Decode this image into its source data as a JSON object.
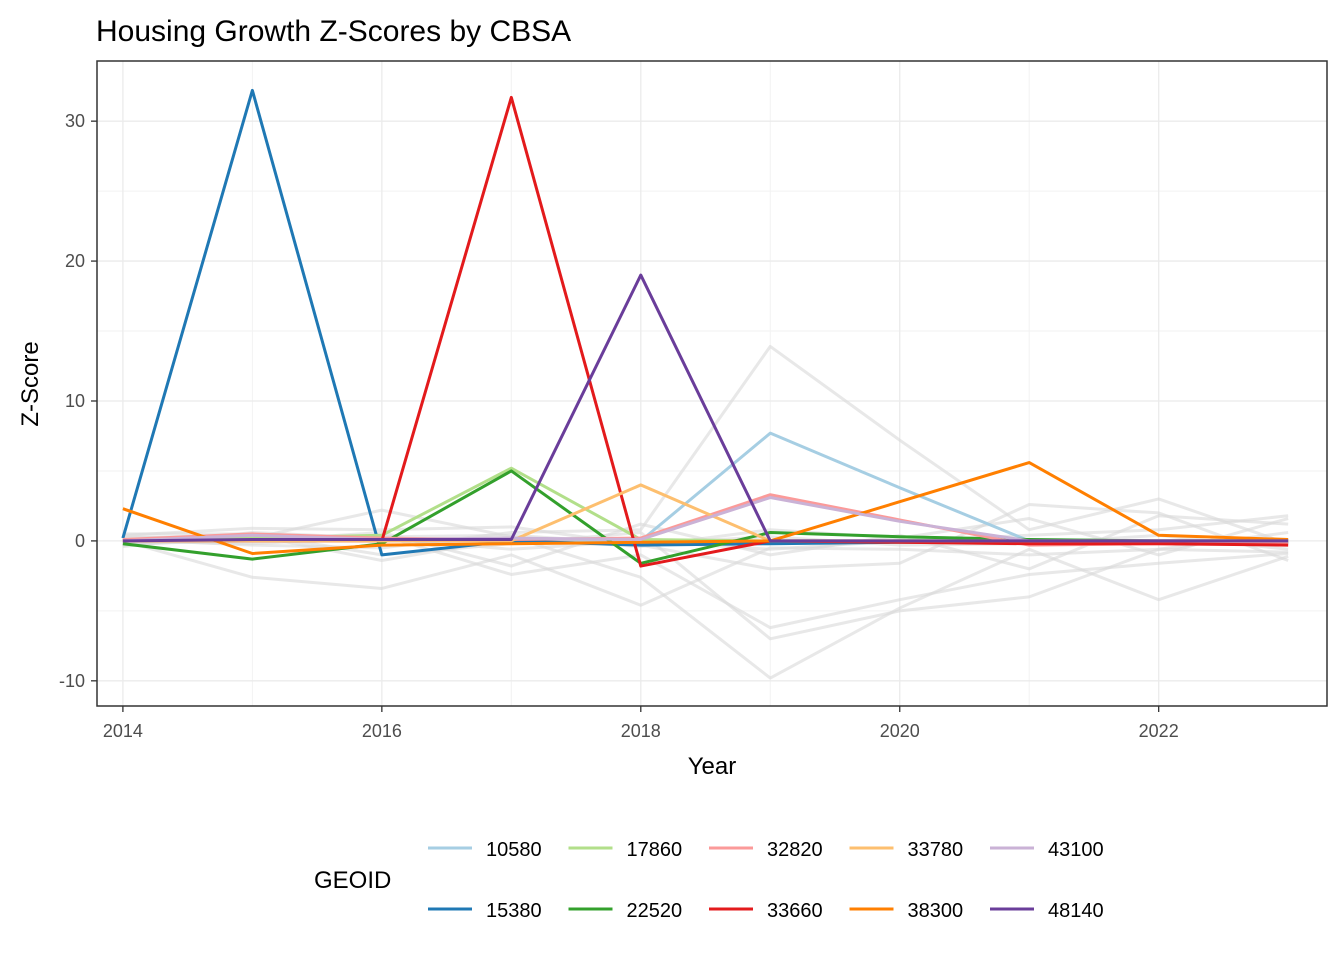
{
  "chart_data": {
    "type": "line",
    "title": "Housing Growth Z-Scores by CBSA",
    "xlabel": "Year",
    "ylabel": "Z-Score",
    "xlim": [
      2013.8,
      2023.3
    ],
    "ylim": [
      -11.8,
      34.3
    ],
    "x_ticks": [
      2014,
      2016,
      2018,
      2020,
      2022
    ],
    "y_ticks": [
      -10,
      0,
      10,
      20,
      30
    ],
    "x_tick_labels": [
      "2014",
      "2016",
      "2018",
      "2020",
      "2022"
    ],
    "y_tick_labels": [
      "-10",
      "0",
      "10",
      "20",
      "30"
    ],
    "grid": true,
    "legend": {
      "title": "GEOID",
      "position": "bottom"
    },
    "x": [
      2014,
      2015,
      2016,
      2017,
      2018,
      2019,
      2020,
      2021,
      2022,
      2023
    ],
    "background_series": [
      [
        0.0,
        -2.6,
        -3.4,
        -1.0,
        -4.6,
        -0.5,
        -0.6,
        -1.0,
        -0.6,
        -0.8
      ],
      [
        0.3,
        0.1,
        0.4,
        -2.4,
        -1.0,
        -6.2,
        -4.2,
        -2.4,
        -1.6,
        -0.9
      ],
      [
        -0.3,
        0.2,
        2.2,
        0.3,
        -2.6,
        -9.8,
        -4.8,
        -0.6,
        -4.2,
        -1.1
      ],
      [
        0.5,
        0.5,
        -1.0,
        -0.2,
        0.6,
        -7.0,
        -5.0,
        -4.0,
        -0.6,
        0.6
      ],
      [
        0.1,
        -0.3,
        -0.5,
        0.6,
        0.8,
        13.9,
        7.2,
        0.8,
        3.0,
        -0.2
      ],
      [
        0.4,
        0.9,
        0.8,
        1.0,
        -0.3,
        -2.0,
        -1.6,
        2.6,
        2.0,
        -1.4
      ],
      [
        -0.2,
        0.0,
        0.6,
        -1.8,
        1.2,
        -1.0,
        0.4,
        -2.0,
        1.8,
        1.2
      ],
      [
        0.2,
        0.4,
        -1.4,
        0.2,
        -0.4,
        0.8,
        0.2,
        1.6,
        -1.0,
        1.6
      ],
      [
        -0.4,
        0.6,
        0.2,
        -0.6,
        0.0,
        -0.6,
        0.0,
        0.4,
        0.8,
        1.8
      ],
      [
        0.0,
        -0.2,
        0.3,
        0.4,
        -0.2,
        0.3,
        -0.3,
        -0.2,
        0.4,
        -0.6
      ]
    ],
    "series": [
      {
        "name": "10580",
        "color": "#a6cee3",
        "values": [
          0.0,
          0.0,
          0.0,
          0.0,
          0.0,
          7.7,
          3.8,
          0.0,
          0.0,
          0.0
        ]
      },
      {
        "name": "15380",
        "color": "#1f78b4",
        "values": [
          0.2,
          32.2,
          -1.0,
          0.0,
          -0.3,
          -0.2,
          -0.1,
          -0.1,
          -0.1,
          -0.1
        ]
      },
      {
        "name": "17860",
        "color": "#b2df8a",
        "values": [
          0.1,
          0.2,
          0.4,
          5.2,
          0.1,
          0.0,
          0.0,
          0.0,
          0.0,
          0.0
        ]
      },
      {
        "name": "22520",
        "color": "#33a02c",
        "values": [
          -0.2,
          -1.3,
          -0.2,
          5.0,
          -1.6,
          0.6,
          0.3,
          0.1,
          0.0,
          0.0
        ]
      },
      {
        "name": "32820",
        "color": "#fb9a99",
        "values": [
          0.1,
          0.5,
          0.2,
          0.1,
          0.2,
          3.3,
          1.5,
          -0.3,
          -0.2,
          -0.2
        ]
      },
      {
        "name": "33660",
        "color": "#e31a1c",
        "values": [
          0.0,
          0.0,
          0.0,
          31.7,
          -1.8,
          0.0,
          -0.1,
          -0.2,
          -0.2,
          -0.3
        ]
      },
      {
        "name": "33780",
        "color": "#fdbf6f",
        "values": [
          0.0,
          0.0,
          0.0,
          0.0,
          4.0,
          0.0,
          0.0,
          0.0,
          0.0,
          0.0
        ]
      },
      {
        "name": "38300",
        "color": "#ff7f00",
        "values": [
          2.3,
          -0.9,
          -0.3,
          -0.2,
          -0.1,
          0.0,
          2.8,
          5.6,
          0.4,
          0.1
        ]
      },
      {
        "name": "43100",
        "color": "#cab2d6",
        "values": [
          0.0,
          0.4,
          0.1,
          0.2,
          0.1,
          3.1,
          1.4,
          0.0,
          0.0,
          0.0
        ]
      },
      {
        "name": "48140",
        "color": "#6a3d9a",
        "values": [
          0.0,
          0.1,
          0.1,
          0.1,
          19.0,
          0.0,
          0.0,
          0.0,
          0.0,
          0.0
        ]
      }
    ],
    "legend_order": [
      "10580",
      "17860",
      "32820",
      "33780",
      "43100",
      "15380",
      "22520",
      "33660",
      "38300",
      "48140"
    ]
  }
}
